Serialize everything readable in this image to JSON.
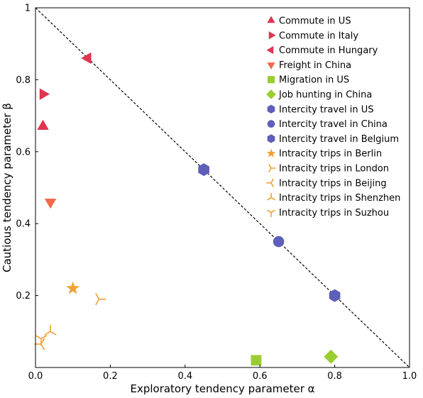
{
  "chart_data": {
    "type": "scatter",
    "xlabel": "Exploratory tendency parameter α",
    "ylabel": "Cautious tendency parameter β",
    "xlim": [
      0,
      1
    ],
    "ylim": [
      0,
      1
    ],
    "xticks": [
      0.0,
      0.2,
      0.4,
      0.6,
      0.8,
      1.0
    ],
    "xtick_labels": [
      "0.0",
      "0.2",
      "0.4",
      "0.6",
      "0.8",
      "1.0"
    ],
    "yticks": [
      0.2,
      0.4,
      0.6,
      0.8,
      1.0
    ],
    "ytick_labels": [
      "0.2",
      "0.4",
      "0.6",
      "0.8",
      "1"
    ],
    "grid": false,
    "legend_position": "top-right",
    "reference_line": {
      "style": "dashed",
      "color": "#000000",
      "from": [
        0,
        1
      ],
      "to": [
        1,
        0
      ]
    },
    "series": [
      {
        "name": "Commute in US",
        "marker": "triangle-up",
        "color": "#e0344f",
        "points": [
          [
            0.02,
            0.67
          ]
        ]
      },
      {
        "name": "Commute in Italy",
        "marker": "triangle-right",
        "color": "#e0344f",
        "points": [
          [
            0.02,
            0.76
          ]
        ]
      },
      {
        "name": "Commute in Hungary",
        "marker": "triangle-left",
        "color": "#e0344f",
        "points": [
          [
            0.14,
            0.86
          ]
        ]
      },
      {
        "name": "Freight in China",
        "marker": "triangle-down",
        "color": "#f5684a",
        "points": [
          [
            0.04,
            0.46
          ]
        ]
      },
      {
        "name": "Migration in US",
        "marker": "square",
        "color": "#9acd32",
        "points": [
          [
            0.59,
            0.02
          ]
        ]
      },
      {
        "name": " Job hunting in China",
        "marker": "diamond",
        "color": "#9acd32",
        "points": [
          [
            0.79,
            0.03
          ]
        ]
      },
      {
        "name": "Intercity travel in US",
        "marker": "hexagon",
        "color": "#5d5fb8",
        "points": [
          [
            0.45,
            0.55
          ]
        ]
      },
      {
        "name": "Intercity travel in China",
        "marker": "circle",
        "color": "#5d5fb8",
        "points": [
          [
            0.65,
            0.35
          ]
        ]
      },
      {
        "name": "Intercity travel in Belgium",
        "marker": "hexagon",
        "color": "#5d5fb8",
        "points": [
          [
            0.8,
            0.2
          ]
        ]
      },
      {
        "name": "Intracity trips in Berlin",
        "marker": "star",
        "color": "#f2a035",
        "points": [
          [
            0.1,
            0.22
          ]
        ]
      },
      {
        "name": "Intracity trips in London",
        "marker": "tri-right",
        "color": "#f2a035",
        "points": [
          [
            0.17,
            0.19
          ]
        ]
      },
      {
        "name": "Intracity trips in Beijing",
        "marker": "tri-left",
        "color": "#f2a035",
        "points": [
          [
            0.015,
            0.065
          ]
        ]
      },
      {
        "name": "Intracity trips in Shenzhen",
        "marker": "tri-up",
        "color": "#f2a035",
        "points": [
          [
            0.04,
            0.1
          ]
        ]
      },
      {
        "name": "Intracity trips in Suzhou",
        "marker": "tri-down",
        "color": "#f2a035",
        "points": [
          [
            0.015,
            0.08
          ]
        ]
      }
    ]
  }
}
